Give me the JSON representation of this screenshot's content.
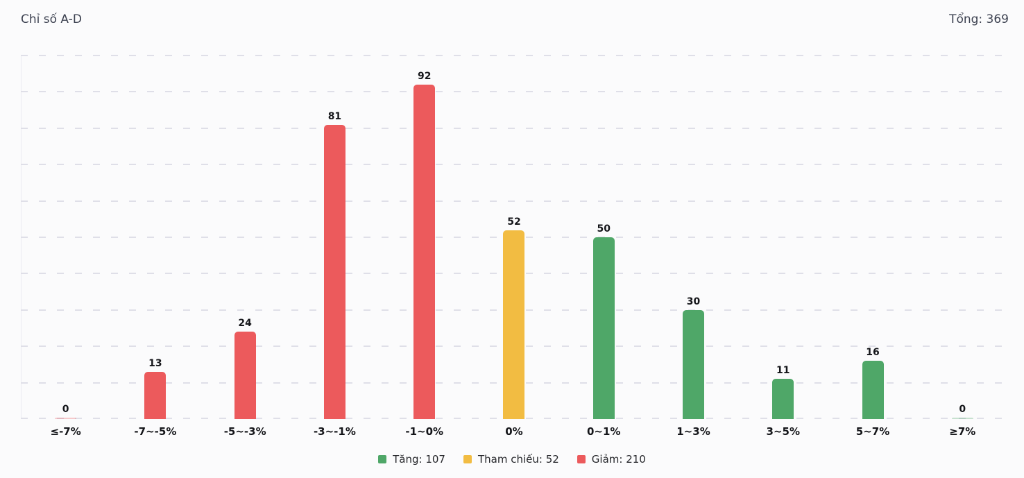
{
  "header": {
    "title": "Chỉ số A-D",
    "total_label": "Tổng: 369"
  },
  "chart_data": {
    "type": "bar",
    "title": "Chỉ số A-D",
    "categories": [
      "≤-7%",
      "-7~-5%",
      "-5~-3%",
      "-3~-1%",
      "-1~0%",
      "0%",
      "0~1%",
      "1~3%",
      "3~5%",
      "5~7%",
      "≥7%"
    ],
    "values": [
      0,
      13,
      24,
      81,
      92,
      52,
      50,
      30,
      11,
      16,
      0
    ],
    "groups": [
      "down",
      "down",
      "down",
      "down",
      "down",
      "ref",
      "up",
      "up",
      "up",
      "up",
      "up"
    ],
    "colors": {
      "up": "#4FA768",
      "ref": "#F2BC42",
      "down": "#EC5A5C"
    },
    "ylim": [
      0,
      100
    ],
    "grid_step": 10,
    "grid_style": "dashed",
    "xlabel": "",
    "ylabel": "",
    "legend_position": "bottom",
    "legend": [
      {
        "label": "Tăng: 107",
        "color_key": "up"
      },
      {
        "label": "Tham chiếu: 52",
        "color_key": "ref"
      },
      {
        "label": "Giảm: 210",
        "color_key": "down"
      }
    ],
    "total": 369
  }
}
